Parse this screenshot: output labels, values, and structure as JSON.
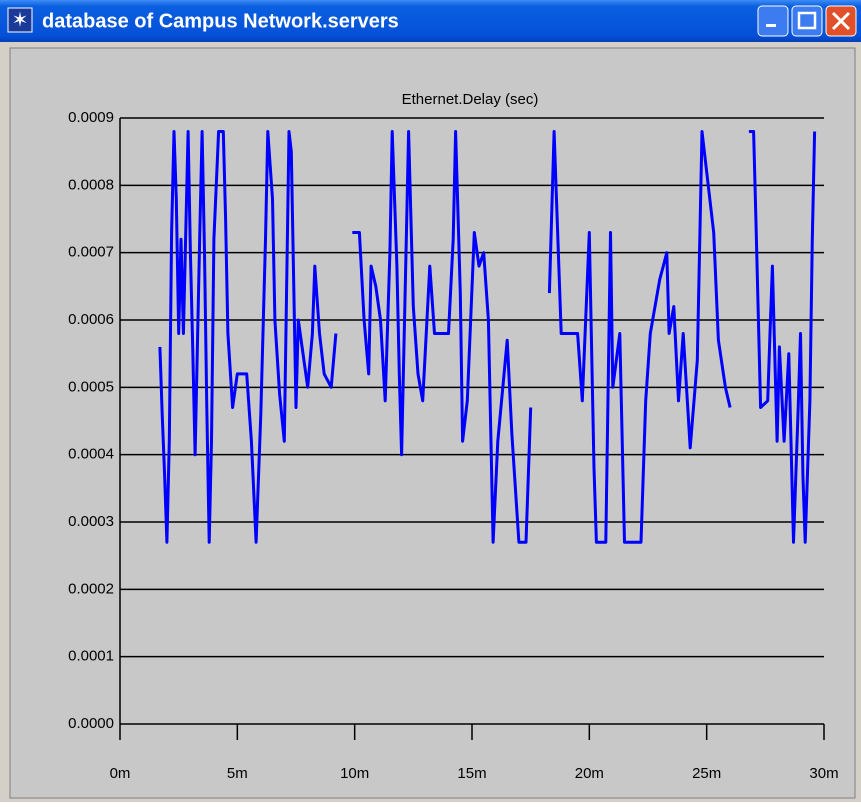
{
  "window": {
    "title": "database of Campus Network.servers"
  },
  "chart_data": {
    "type": "line",
    "title": "Ethernet.Delay (sec)",
    "x": [
      1.7,
      1.8,
      1.9,
      2.0,
      2.1,
      2.2,
      2.3,
      2.4,
      2.5,
      2.6,
      2.7,
      2.9,
      3.0,
      3.1,
      3.2,
      3.4,
      3.5,
      3.6,
      3.7,
      3.8,
      3.9,
      4.0,
      4.2,
      4.4,
      4.5,
      4.6,
      4.8,
      5.0,
      5.4,
      5.6,
      5.8,
      6.0,
      6.2,
      6.3,
      6.5,
      6.6,
      6.8,
      7.0,
      7.2,
      7.3,
      7.5,
      7.6,
      8.0,
      8.2,
      8.3,
      8.5,
      8.7,
      9.0,
      9.2,
      null,
      9.9,
      10.2,
      10.4,
      10.6,
      10.7,
      10.9,
      11.1,
      11.3,
      11.5,
      11.6,
      11.8,
      11.9,
      12.0,
      12.2,
      12.3,
      12.5,
      12.7,
      12.9,
      13.2,
      13.4,
      14.0,
      14.2,
      14.3,
      14.5,
      14.6,
      14.8,
      15.1,
      15.3,
      15.5,
      15.7,
      15.9,
      16.1,
      16.5,
      16.7,
      17.0,
      17.3,
      17.5,
      null,
      18.3,
      18.5,
      18.8,
      19.5,
      19.7,
      20.0,
      20.2,
      20.3,
      20.7,
      20.9,
      21.0,
      21.3,
      21.5,
      22.2,
      22.4,
      22.6,
      23.0,
      23.3,
      23.4,
      23.6,
      23.8,
      24.0,
      24.3,
      24.6,
      24.8,
      25.3,
      25.5,
      25.8,
      26.0,
      null,
      26.8,
      27.0,
      27.1,
      27.3,
      27.6,
      27.7,
      27.8,
      28.0,
      28.1,
      28.3,
      28.5,
      28.7,
      28.9,
      29.0,
      29.1,
      29.2,
      29.4,
      29.5,
      29.6
    ],
    "series": [
      {
        "name": "Ethernet.Delay",
        "color": "#0000ff",
        "values": [
          0.00056,
          0.00046,
          0.00037,
          0.00027,
          0.00042,
          0.00073,
          0.00088,
          0.00078,
          0.00058,
          0.00072,
          0.00058,
          0.00088,
          0.0007,
          0.00056,
          0.0004,
          0.00073,
          0.00088,
          0.0007,
          0.00047,
          0.00027,
          0.00042,
          0.00072,
          0.00088,
          0.00088,
          0.00075,
          0.00058,
          0.00047,
          0.00052,
          0.00052,
          0.00042,
          0.00027,
          0.00046,
          0.00072,
          0.00088,
          0.00078,
          0.0006,
          0.00049,
          0.00042,
          0.00088,
          0.00085,
          0.00047,
          0.0006,
          0.0005,
          0.00058,
          0.00068,
          0.00058,
          0.00052,
          0.0005,
          0.00058,
          null,
          0.00073,
          0.00073,
          0.0006,
          0.00052,
          0.00068,
          0.00065,
          0.0006,
          0.00048,
          0.0007,
          0.00088,
          0.00068,
          0.00052,
          0.0004,
          0.00072,
          0.00088,
          0.00062,
          0.00052,
          0.00048,
          0.00068,
          0.00058,
          0.00058,
          0.00072,
          0.00088,
          0.00064,
          0.00042,
          0.00048,
          0.00073,
          0.00068,
          0.0007,
          0.0006,
          0.00027,
          0.00042,
          0.00057,
          0.00043,
          0.00027,
          0.00027,
          0.00047,
          null,
          0.00064,
          0.00088,
          0.00058,
          0.00058,
          0.00048,
          0.00073,
          0.00038,
          0.00027,
          0.00027,
          0.00073,
          0.0005,
          0.00058,
          0.00027,
          0.00027,
          0.00048,
          0.00058,
          0.00066,
          0.0007,
          0.00058,
          0.00062,
          0.00048,
          0.00058,
          0.00041,
          0.00054,
          0.00088,
          0.00073,
          0.00057,
          0.0005,
          0.00047,
          null,
          0.00088,
          0.00088,
          0.00075,
          0.00047,
          0.00048,
          0.00058,
          0.00068,
          0.00042,
          0.00056,
          0.00042,
          0.00055,
          0.00027,
          0.00047,
          0.00058,
          0.00037,
          0.00027,
          0.00048,
          0.00072,
          0.00088
        ]
      }
    ],
    "xlim": [
      0,
      30
    ],
    "xticks": [
      {
        "value": 0,
        "label": "0m"
      },
      {
        "value": 5,
        "label": "5m"
      },
      {
        "value": 10,
        "label": "10m"
      },
      {
        "value": 15,
        "label": "15m"
      },
      {
        "value": 20,
        "label": "20m"
      },
      {
        "value": 25,
        "label": "25m"
      },
      {
        "value": 30,
        "label": "30m"
      }
    ],
    "ylim": [
      0,
      0.0009
    ],
    "yticks": [
      {
        "value": 0,
        "label": "0.0000"
      },
      0.0001,
      0.0002,
      0.0003,
      0.0004,
      0.0005,
      0.0006,
      0.0007,
      0.0008,
      0.0009
    ],
    "grid": true
  }
}
